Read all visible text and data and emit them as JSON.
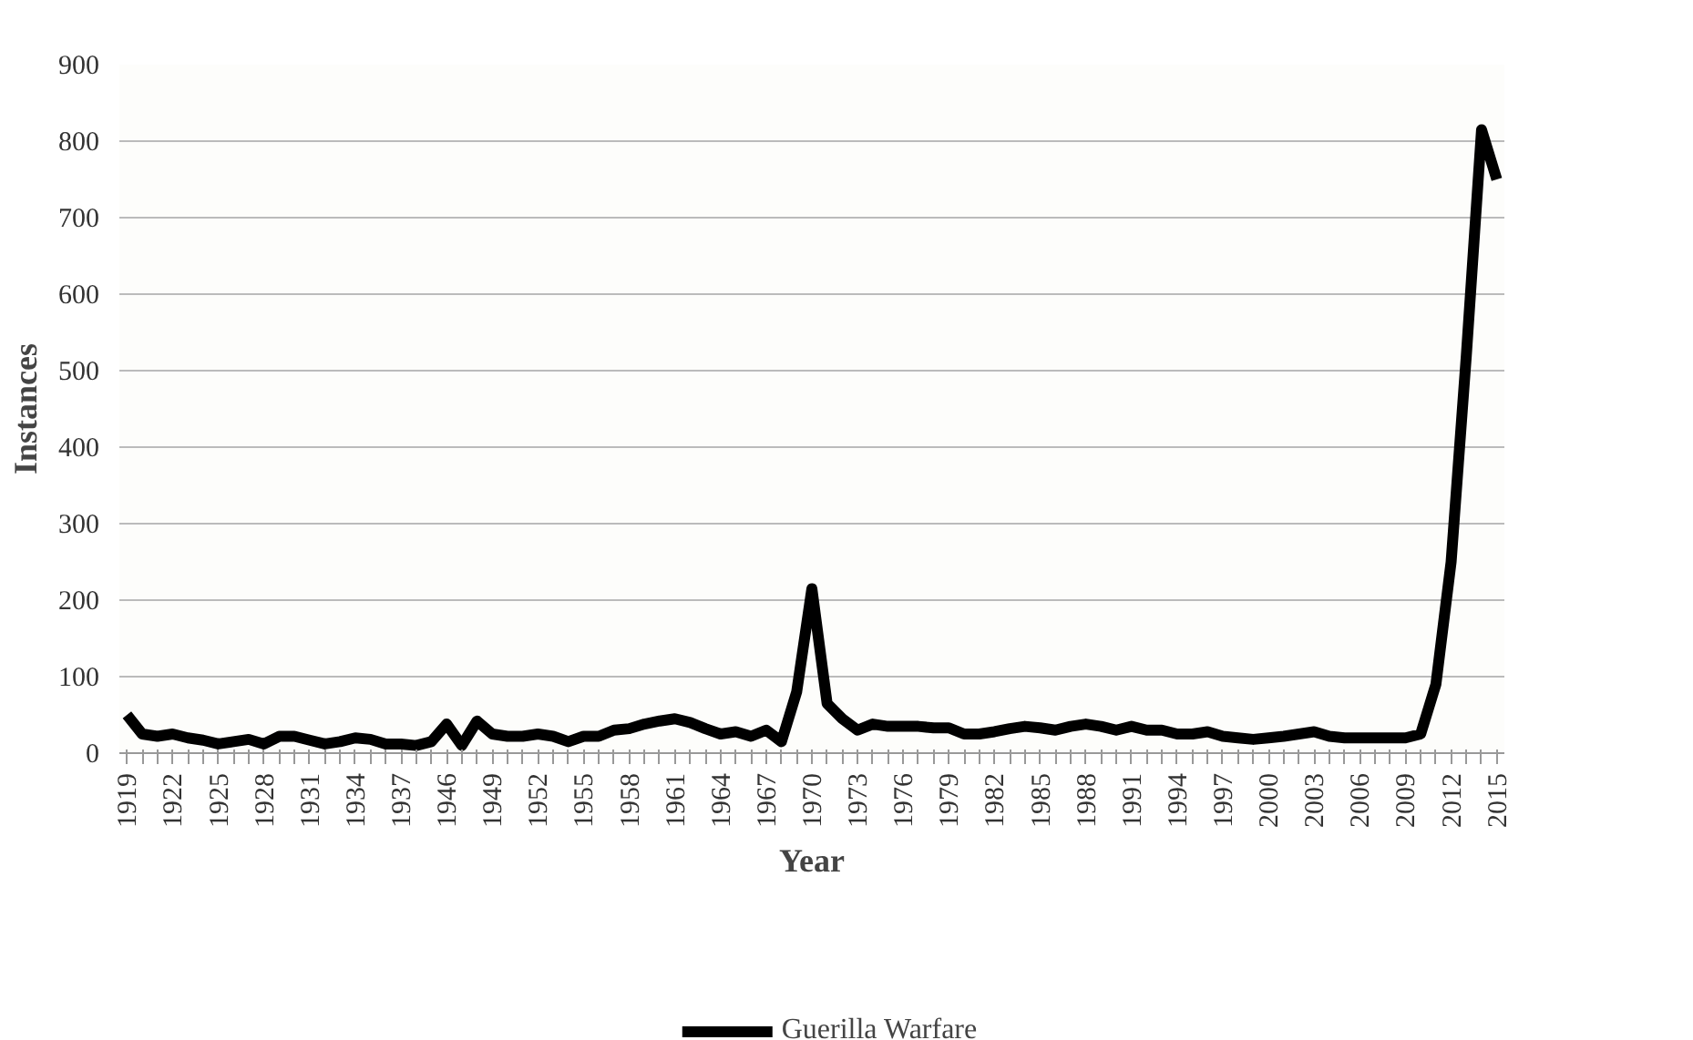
{
  "chart_data": {
    "type": "line",
    "xlabel": "Year",
    "ylabel": "Instances",
    "categories": [
      "1919",
      null,
      null,
      "1922",
      null,
      null,
      "1925",
      null,
      null,
      "1928",
      null,
      null,
      "1931",
      null,
      null,
      "1934",
      null,
      null,
      "1937",
      null,
      null,
      "1946",
      null,
      null,
      "1949",
      null,
      null,
      "1952",
      null,
      null,
      "1955",
      null,
      null,
      "1958",
      null,
      null,
      "1961",
      null,
      null,
      "1964",
      null,
      null,
      "1967",
      null,
      null,
      "1970",
      null,
      null,
      "1973",
      null,
      null,
      "1976",
      null,
      null,
      "1979",
      null,
      null,
      "1982",
      null,
      null,
      "1985",
      null,
      null,
      "1988",
      null,
      null,
      "1991",
      null,
      null,
      "1994",
      null,
      null,
      "1997",
      null,
      null,
      "2000",
      null,
      null,
      "2003",
      null,
      null,
      "2006",
      null,
      null,
      "2009",
      null,
      null,
      "2012",
      null,
      null,
      "2015"
    ],
    "series": [
      {
        "name": "Guerilla Warfare",
        "color": "#000000",
        "values": [
          50,
          25,
          22,
          25,
          20,
          17,
          12,
          15,
          18,
          12,
          22,
          22,
          17,
          12,
          15,
          20,
          18,
          12,
          12,
          10,
          15,
          38,
          10,
          42,
          25,
          22,
          22,
          25,
          22,
          15,
          22,
          22,
          30,
          32,
          38,
          42,
          45,
          40,
          32,
          25,
          28,
          22,
          30,
          15,
          80,
          215,
          65,
          45,
          30,
          38,
          35,
          35,
          35,
          33,
          33,
          25,
          25,
          28,
          32,
          35,
          33,
          30,
          35,
          38,
          35,
          30,
          35,
          30,
          30,
          25,
          25,
          28,
          22,
          20,
          18,
          20,
          22,
          25,
          28,
          22,
          20,
          20,
          20,
          20,
          20,
          25,
          90,
          250,
          520,
          815,
          750
        ]
      }
    ],
    "ylim": [
      0,
      900
    ],
    "yticks": [
      0,
      100,
      200,
      300,
      400,
      500,
      600,
      700,
      800,
      900
    ],
    "grid": "y",
    "legend": "bottom",
    "line_style": "solid",
    "marker": "none"
  }
}
